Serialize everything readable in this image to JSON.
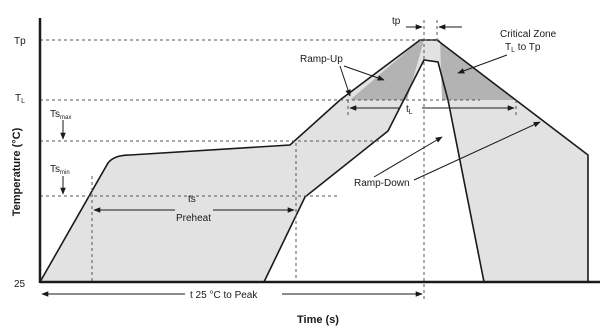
{
  "diagram": {
    "axes": {
      "y_title": "Temperature (°C)",
      "x_title": "Time (s)"
    },
    "y_ticks": {
      "tp": "Tp",
      "tl_main": "T",
      "tl_sub": "L",
      "tsmax_main": "Ts",
      "tsmax_sub": "max",
      "tsmin_main": "Ts",
      "tsmin_sub": "min",
      "t25": "25"
    },
    "labels": {
      "tp_top": "tp",
      "ramp_up": "Ramp-Up",
      "critical_zone_line1": "Critical Zone",
      "critical_zone_l2_main": "T",
      "critical_zone_l2_sub": "L",
      "critical_zone_l2_rest": " to Tp",
      "tl_time_main": "t",
      "tl_time_sub": "L",
      "ts": "ts",
      "preheat": "Preheat",
      "ramp_down": "Ramp-Down",
      "t25_to_peak": "t 25 °C to Peak"
    },
    "colors": {
      "fill": "#e2e2e2",
      "critical_fill": "#b3b3b3",
      "line": "#1a1a1a",
      "dashed": "#555555"
    }
  }
}
